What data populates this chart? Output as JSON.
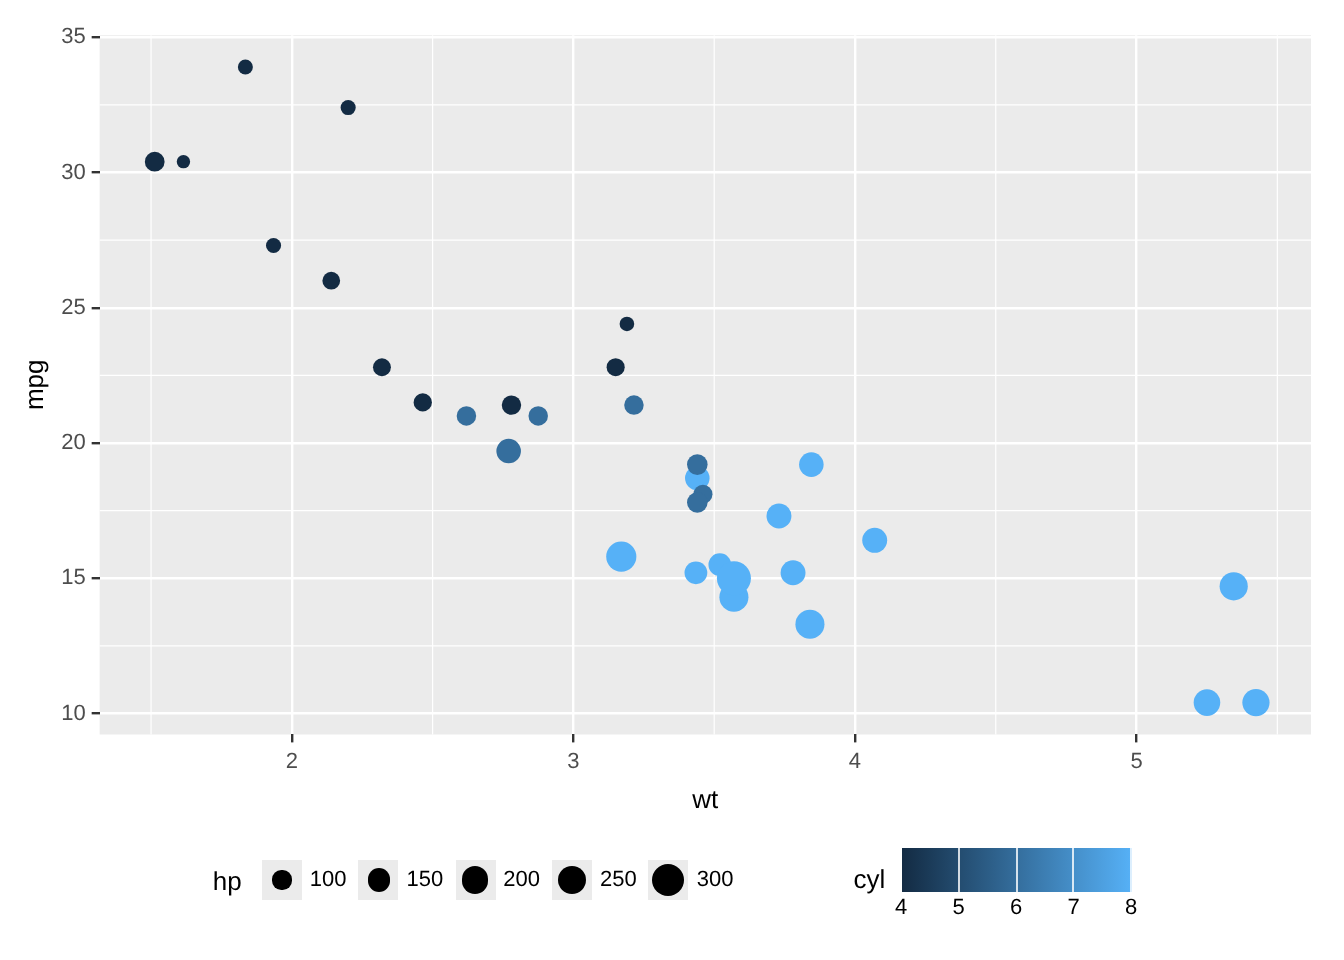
{
  "chart_data": {
    "type": "bubble",
    "xlabel": "wt",
    "ylabel": "mpg",
    "legend_title": "hp",
    "clabel": "cyl",
    "x": [
      2.62,
      2.875,
      2.32,
      3.215,
      3.44,
      3.46,
      3.57,
      3.19,
      3.15,
      3.44,
      3.44,
      4.07,
      3.73,
      3.78,
      5.25,
      5.424,
      5.345,
      2.2,
      1.615,
      1.835,
      2.465,
      3.52,
      3.435,
      3.84,
      3.845,
      1.935,
      2.14,
      1.513,
      3.17,
      2.77,
      3.57,
      2.78
    ],
    "values": [
      21.0,
      21.0,
      22.8,
      21.4,
      18.7,
      18.1,
      14.3,
      24.4,
      22.8,
      19.2,
      17.8,
      16.4,
      17.3,
      15.2,
      10.4,
      10.4,
      14.7,
      32.4,
      30.4,
      33.9,
      21.5,
      15.5,
      15.2,
      13.3,
      19.2,
      27.3,
      26.0,
      30.4,
      15.8,
      19.7,
      15.0,
      21.4
    ],
    "sizes": [
      110,
      110,
      93,
      110,
      175,
      105,
      245,
      62,
      95,
      123,
      123,
      180,
      180,
      180,
      205,
      215,
      230,
      66,
      52,
      65,
      97,
      150,
      150,
      245,
      175,
      66,
      91,
      113,
      264,
      175,
      335,
      109
    ],
    "cvalues": [
      6,
      6,
      4,
      6,
      8,
      6,
      8,
      4,
      4,
      6,
      6,
      8,
      8,
      8,
      8,
      8,
      8,
      4,
      4,
      4,
      4,
      8,
      8,
      8,
      8,
      4,
      4,
      4,
      8,
      6,
      8,
      4
    ],
    "size_legend": [
      100,
      150,
      200,
      250,
      300
    ],
    "clim": [
      4,
      8
    ],
    "cticks": [
      4,
      5,
      6,
      7,
      8
    ],
    "xlim": [
      1.3175,
      5.6195
    ],
    "xticks": [
      2,
      3,
      4,
      5
    ],
    "ylim": [
      9.225,
      35.075
    ],
    "yticks": [
      10,
      15,
      20,
      25,
      30,
      35
    ],
    "grid": true
  }
}
